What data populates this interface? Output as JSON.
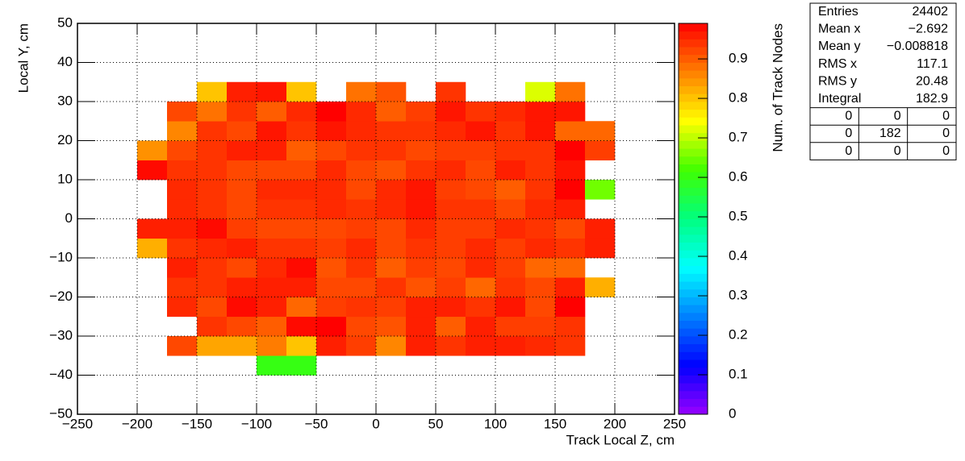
{
  "chart_data": {
    "type": "heatmap",
    "x_label": "Track Local Z, cm",
    "y_label": "Local Y, cm",
    "z_label": "Num. of Track Nodes",
    "x_bins": [
      -250,
      -225,
      -200,
      -175,
      -150,
      -125,
      -100,
      -75,
      -50,
      -25,
      0,
      25,
      50,
      75,
      100,
      125,
      150,
      175,
      200,
      225,
      250
    ],
    "y_bins": [
      -50,
      -45,
      -40,
      -35,
      -30,
      -25,
      -20,
      -15,
      -10,
      -5,
      0,
      5,
      10,
      15,
      20,
      25,
      30,
      35,
      40,
      45,
      50
    ],
    "z": [
      [
        null,
        null,
        null,
        null,
        null,
        null,
        null,
        null,
        null,
        null,
        null,
        null,
        null,
        null,
        null,
        null,
        null,
        null,
        null,
        null
      ],
      [
        null,
        null,
        null,
        null,
        null,
        null,
        null,
        null,
        null,
        null,
        null,
        null,
        null,
        null,
        null,
        null,
        null,
        null,
        null,
        null
      ],
      [
        null,
        null,
        null,
        null,
        null,
        null,
        0.6,
        0.6,
        null,
        null,
        null,
        null,
        null,
        null,
        null,
        null,
        null,
        null,
        null,
        null
      ],
      [
        null,
        null,
        null,
        0.92,
        0.83,
        0.83,
        0.87,
        0.8,
        0.96,
        0.93,
        0.86,
        0.96,
        0.94,
        0.96,
        0.96,
        0.95,
        0.94,
        null,
        null,
        null
      ],
      [
        null,
        null,
        null,
        null,
        0.94,
        0.92,
        0.9,
        0.98,
        0.99,
        0.92,
        0.91,
        0.96,
        0.9,
        0.96,
        0.93,
        0.93,
        0.94,
        null,
        null,
        null
      ],
      [
        null,
        null,
        null,
        0.95,
        0.92,
        0.98,
        0.96,
        0.89,
        0.93,
        0.94,
        0.93,
        0.96,
        0.96,
        0.94,
        0.97,
        0.92,
        0.99,
        null,
        null,
        null
      ],
      [
        null,
        null,
        null,
        0.94,
        0.94,
        0.96,
        0.96,
        0.96,
        0.92,
        0.92,
        0.94,
        0.91,
        0.93,
        0.89,
        0.94,
        0.92,
        0.96,
        0.82,
        null,
        null
      ],
      [
        null,
        null,
        null,
        0.96,
        0.94,
        0.92,
        0.95,
        0.98,
        0.91,
        0.94,
        0.9,
        0.93,
        0.92,
        0.95,
        0.93,
        0.89,
        0.89,
        null,
        null,
        null
      ],
      [
        null,
        null,
        0.82,
        0.94,
        0.95,
        0.96,
        0.94,
        0.94,
        0.93,
        0.95,
        0.92,
        0.94,
        0.93,
        0.95,
        0.93,
        0.95,
        0.94,
        0.96,
        null,
        null
      ],
      [
        null,
        null,
        0.96,
        0.96,
        0.98,
        0.93,
        0.92,
        0.92,
        0.92,
        0.93,
        0.92,
        0.95,
        0.93,
        0.93,
        0.95,
        0.94,
        0.92,
        0.96,
        null,
        null
      ],
      [
        null,
        null,
        null,
        0.95,
        0.94,
        0.92,
        0.94,
        0.94,
        0.95,
        0.94,
        0.95,
        0.97,
        0.94,
        0.94,
        0.92,
        0.95,
        0.96,
        null,
        null,
        null
      ],
      [
        null,
        null,
        null,
        0.95,
        0.94,
        0.92,
        0.95,
        0.95,
        0.95,
        0.92,
        0.95,
        0.97,
        0.93,
        0.92,
        0.9,
        0.94,
        0.99,
        0.65,
        null,
        null
      ],
      [
        null,
        null,
        0.98,
        0.94,
        0.94,
        0.92,
        0.92,
        0.92,
        0.95,
        0.92,
        0.91,
        0.94,
        0.95,
        0.92,
        0.96,
        0.94,
        0.97,
        null,
        null,
        null
      ],
      [
        null,
        null,
        0.85,
        0.92,
        0.94,
        0.96,
        0.96,
        0.9,
        0.92,
        0.94,
        0.94,
        0.92,
        0.93,
        0.93,
        0.94,
        0.94,
        0.99,
        0.93,
        null,
        null
      ],
      [
        null,
        null,
        null,
        0.86,
        0.94,
        0.92,
        0.97,
        0.94,
        0.97,
        0.95,
        0.94,
        0.94,
        0.95,
        0.97,
        0.94,
        0.97,
        0.89,
        0.89,
        null,
        null
      ],
      [
        null,
        null,
        null,
        0.92,
        0.88,
        0.94,
        0.9,
        0.95,
        0.99,
        0.95,
        0.9,
        0.93,
        0.97,
        0.94,
        0.95,
        0.97,
        0.97,
        null,
        null,
        null
      ],
      [
        null,
        null,
        null,
        null,
        0.8,
        0.96,
        0.97,
        0.8,
        null,
        0.88,
        0.91,
        null,
        0.94,
        null,
        null,
        0.72,
        0.88,
        null,
        null,
        null
      ],
      [
        null,
        null,
        null,
        null,
        null,
        null,
        null,
        null,
        null,
        null,
        null,
        null,
        null,
        null,
        null,
        null,
        null,
        null,
        null,
        null
      ],
      [
        null,
        null,
        null,
        null,
        null,
        null,
        null,
        null,
        null,
        null,
        null,
        null,
        null,
        null,
        null,
        null,
        null,
        null,
        null,
        null
      ],
      [
        null,
        null,
        null,
        null,
        null,
        null,
        null,
        null,
        null,
        null,
        null,
        null,
        null,
        null,
        null,
        null,
        null,
        null,
        null,
        null
      ]
    ],
    "xlim": [
      -250,
      250
    ],
    "ylim": [
      -50,
      50
    ],
    "zlim": [
      0,
      0.99
    ],
    "xticks": [
      {
        "value": -250,
        "label": "−250"
      },
      {
        "value": -200,
        "label": "−200"
      },
      {
        "value": -150,
        "label": "−150"
      },
      {
        "value": -100,
        "label": "−100"
      },
      {
        "value": -50,
        "label": "−50"
      },
      0,
      50,
      100,
      150,
      200,
      250
    ],
    "yticks": [
      {
        "value": -50,
        "label": "−50"
      },
      {
        "value": -40,
        "label": "−40"
      },
      {
        "value": -30,
        "label": "−30"
      },
      {
        "value": -20,
        "label": "−20"
      },
      {
        "value": -10,
        "label": "−10"
      },
      0,
      10,
      20,
      30,
      40,
      50
    ],
    "zticks": [
      0,
      0.1,
      0.2,
      0.3,
      0.4,
      0.5,
      0.6,
      0.7,
      0.8,
      0.9
    ],
    "palette": [
      "#9900ff",
      "#0000ff",
      "#0080ff",
      "#00ffff",
      "#00ff80",
      "#40ff00",
      "#ffff00",
      "#ff8000",
      "#ff0000"
    ],
    "grid": true,
    "stats": {
      "rows": [
        [
          "Entries",
          "24402"
        ],
        [
          "Mean x",
          "−2.692"
        ],
        [
          "Mean y",
          "−0.008818"
        ],
        [
          "RMS x",
          "117.1"
        ],
        [
          "RMS y",
          "20.48"
        ],
        [
          "Integral",
          "182.9"
        ]
      ],
      "table": [
        [
          "0",
          "0",
          "0"
        ],
        [
          "0",
          "182",
          "0"
        ],
        [
          "0",
          "0",
          "0"
        ]
      ]
    }
  }
}
